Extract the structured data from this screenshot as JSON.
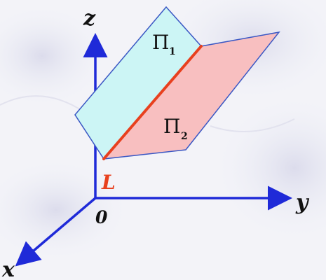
{
  "axes": {
    "z": "z",
    "y": "y",
    "x": "x",
    "origin": "0"
  },
  "planes": {
    "plane1": {
      "symbol": "Π",
      "subscript": "1",
      "fill": "#ccf5f5"
    },
    "plane2": {
      "symbol": "Π",
      "subscript": "2",
      "fill": "#f8bfc0"
    }
  },
  "line": {
    "label": "L",
    "color": "#e8401e"
  },
  "colors": {
    "axis": "#1f2ad8",
    "plane_border": "#3a57c4",
    "label_text": "#111111"
  }
}
